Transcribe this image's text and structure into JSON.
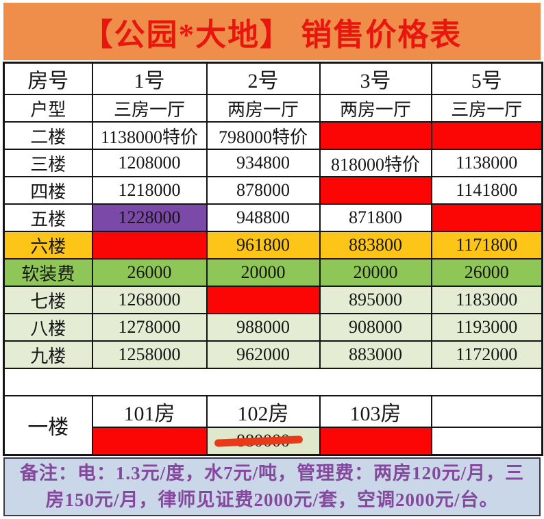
{
  "title": "【公园*大地】 销售价格表",
  "colors": {
    "banner_bg": "#ef8d4b",
    "title_red": "#e8170e",
    "sold_out_red": "#fb0505",
    "purple_highlight": "#7b4aa9",
    "yellow_highlight": "#fdc517",
    "green_fee_row": "#8ec757",
    "pale_green_rows": "#e4ecd4",
    "special_price_red": "#c93f47",
    "yellow_row_text": "#d95c1e",
    "purple_cell_text": "#302a6a",
    "note_bg": "#c9d7e9",
    "note_text": "#84499c",
    "strike_marker": "#e8391b"
  },
  "table": {
    "rows": [
      {
        "name": "row-room-no",
        "cls": "head",
        "cells": [
          {
            "t": "房号",
            "lab": 1,
            "n": "col-header-room-no"
          },
          {
            "t": "1号",
            "n": "col-header-unit-1"
          },
          {
            "t": "2号",
            "n": "col-header-unit-2"
          },
          {
            "t": "3号",
            "n": "col-header-unit-3"
          },
          {
            "t": "5号",
            "n": "col-header-unit-5"
          }
        ]
      },
      {
        "name": "row-unit-type",
        "cells": [
          {
            "t": "户型",
            "lab": 1,
            "n": "row-label-unit-type"
          },
          {
            "t": "三房一厅"
          },
          {
            "t": "两房一厅"
          },
          {
            "t": "两房一厅"
          },
          {
            "t": "三房一厅"
          }
        ]
      },
      {
        "name": "row-floor-2",
        "cells": [
          {
            "t": "二楼",
            "lab": 1
          },
          {
            "t": "1138000特价",
            "fg": "red"
          },
          {
            "t": "798000特价",
            "fg": "red"
          },
          {
            "t": "",
            "bg": "red"
          },
          {
            "t": "",
            "bg": "red"
          }
        ]
      },
      {
        "name": "row-floor-3",
        "cells": [
          {
            "t": "三楼",
            "lab": 1
          },
          {
            "t": "1208000"
          },
          {
            "t": "934800"
          },
          {
            "t": "818000特价",
            "fg": "red"
          },
          {
            "t": "1138000"
          }
        ]
      },
      {
        "name": "row-floor-4",
        "cells": [
          {
            "t": "四楼",
            "lab": 1
          },
          {
            "t": "1218000"
          },
          {
            "t": "878000"
          },
          {
            "t": "",
            "bg": "red"
          },
          {
            "t": "1141800"
          }
        ]
      },
      {
        "name": "row-floor-5",
        "cells": [
          {
            "t": "五楼",
            "lab": 1
          },
          {
            "t": "1228000",
            "bg": "purple",
            "fg": "navy"
          },
          {
            "t": "948800"
          },
          {
            "t": "871800"
          },
          {
            "t": "",
            "bg": "red"
          }
        ]
      },
      {
        "name": "row-floor-6",
        "cells": [
          {
            "t": "六楼",
            "lab": 1,
            "bg": "yellow",
            "fg": "redlbl"
          },
          {
            "t": "",
            "bg": "red"
          },
          {
            "t": "961800",
            "bg": "yellow",
            "fg": "orange"
          },
          {
            "t": "883800",
            "bg": "yellow",
            "fg": "orange"
          },
          {
            "t": "1171800",
            "bg": "yellow",
            "fg": "orange"
          }
        ]
      },
      {
        "name": "row-soft-furnish-fee",
        "cells": [
          {
            "t": "软装费",
            "lab": 1,
            "bg": "green",
            "n": "row-label-soft-fee"
          },
          {
            "t": "26000",
            "bg": "green"
          },
          {
            "t": "20000",
            "bg": "green"
          },
          {
            "t": "20000",
            "bg": "green"
          },
          {
            "t": "26000",
            "bg": "green"
          }
        ]
      },
      {
        "name": "row-floor-7",
        "cells": [
          {
            "t": "七楼",
            "lab": 1,
            "bg": "pale"
          },
          {
            "t": "1268000",
            "bg": "pale"
          },
          {
            "t": "",
            "bg": "red"
          },
          {
            "t": "895000",
            "bg": "pale"
          },
          {
            "t": "1183000",
            "bg": "pale"
          }
        ]
      },
      {
        "name": "row-floor-8",
        "cells": [
          {
            "t": "八楼",
            "lab": 1,
            "bg": "pale"
          },
          {
            "t": "1278000",
            "bg": "pale"
          },
          {
            "t": "988000",
            "bg": "pale"
          },
          {
            "t": "908000",
            "bg": "pale"
          },
          {
            "t": "1193000",
            "bg": "pale"
          }
        ]
      },
      {
        "name": "row-floor-9",
        "cells": [
          {
            "t": "九楼",
            "lab": 1,
            "bg": "pale"
          },
          {
            "t": "1258000",
            "bg": "pale"
          },
          {
            "t": "962000",
            "bg": "pale"
          },
          {
            "t": "883000",
            "bg": "pale"
          },
          {
            "t": "1172000",
            "bg": "pale"
          }
        ]
      },
      {
        "name": "row-spacer",
        "cells": [
          {
            "t": "",
            "colspan": 5,
            "cls": "spacer",
            "n": "spacer-cell"
          }
        ]
      },
      {
        "name": "row-ground-headers",
        "cls": "head",
        "cells": [
          {
            "t": "一楼",
            "lab": 1,
            "rowspan": 2,
            "n": "ground-floor-label"
          },
          {
            "t": "101房",
            "n": "room-101-header"
          },
          {
            "t": "102房",
            "n": "room-102-header"
          },
          {
            "t": "103房",
            "n": "room-103-header"
          },
          {
            "t": ""
          }
        ]
      },
      {
        "name": "row-ground-prices",
        "cells": [
          {
            "t": "",
            "bg": "red"
          },
          {
            "t": "880000",
            "bg": "pale2",
            "struck": 1,
            "n": "room-102-price-struck"
          },
          {
            "t": "",
            "bg": "red"
          },
          {
            "t": ""
          }
        ]
      }
    ]
  },
  "note": {
    "line1": "备注：电：1.3元/度，水7元/吨，管理费：两房120元/月，三",
    "line2": "房150元/月，律师见证费2000元/套，空调2000元/台。"
  }
}
